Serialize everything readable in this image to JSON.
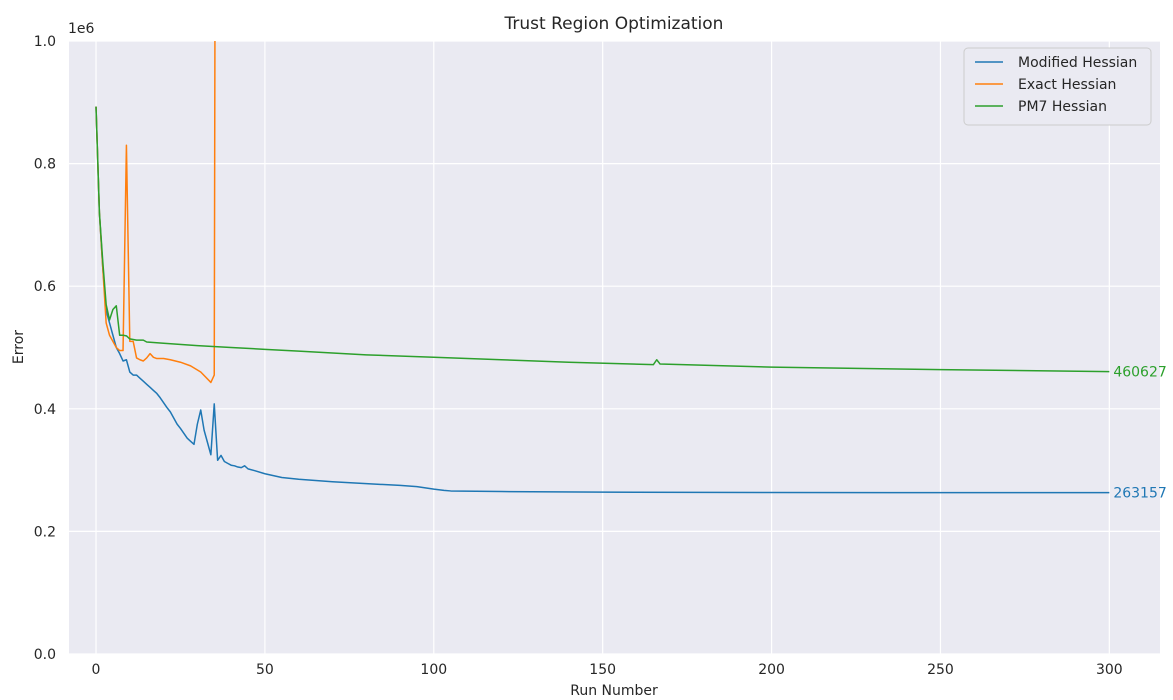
{
  "chart_data": {
    "type": "line",
    "title": "Trust Region Optimization",
    "xlabel": "Run Number",
    "ylabel": "Error",
    "y_offset_label": "1e6",
    "xlim": [
      -8,
      315
    ],
    "ylim": [
      0,
      1000000
    ],
    "xticks": [
      0,
      50,
      100,
      150,
      200,
      250,
      300
    ],
    "yticks": [
      0.0,
      0.2,
      0.4,
      0.6,
      0.8,
      1.0
    ],
    "ytick_labels": [
      "0.0",
      "0.2",
      "0.4",
      "0.6",
      "0.8",
      "1.0"
    ],
    "grid": true,
    "legend_position": "top-right",
    "series": [
      {
        "name": "Modified Hessian",
        "color": "#1f77b4",
        "end_label": "263157",
        "points": [
          [
            0,
            893000
          ],
          [
            1,
            720000
          ],
          [
            2,
            630000
          ],
          [
            3,
            560000
          ],
          [
            4,
            540000
          ],
          [
            5,
            520000
          ],
          [
            6,
            500000
          ],
          [
            7,
            490000
          ],
          [
            8,
            478000
          ],
          [
            9,
            480000
          ],
          [
            10,
            460000
          ],
          [
            11,
            455000
          ],
          [
            12,
            455000
          ],
          [
            13,
            450000
          ],
          [
            14,
            445000
          ],
          [
            15,
            440000
          ],
          [
            16,
            435000
          ],
          [
            17,
            430000
          ],
          [
            18,
            425000
          ],
          [
            19,
            418000
          ],
          [
            20,
            410000
          ],
          [
            21,
            402000
          ],
          [
            22,
            395000
          ],
          [
            23,
            385000
          ],
          [
            24,
            375000
          ],
          [
            25,
            368000
          ],
          [
            26,
            360000
          ],
          [
            27,
            352000
          ],
          [
            28,
            347000
          ],
          [
            29,
            342000
          ],
          [
            30,
            375000
          ],
          [
            31,
            398000
          ],
          [
            32,
            365000
          ],
          [
            33,
            345000
          ],
          [
            34,
            325000
          ],
          [
            35,
            408000
          ],
          [
            36,
            316000
          ],
          [
            37,
            324000
          ],
          [
            38,
            314000
          ],
          [
            39,
            311000
          ],
          [
            40,
            308000
          ],
          [
            41,
            307000
          ],
          [
            42,
            305000
          ],
          [
            43,
            304000
          ],
          [
            44,
            307000
          ],
          [
            45,
            302000
          ],
          [
            47,
            299000
          ],
          [
            50,
            294000
          ],
          [
            55,
            288000
          ],
          [
            60,
            285000
          ],
          [
            70,
            281000
          ],
          [
            80,
            278000
          ],
          [
            90,
            275000
          ],
          [
            95,
            273000
          ],
          [
            100,
            269000
          ],
          [
            103,
            267000
          ],
          [
            105,
            266000
          ],
          [
            120,
            265000
          ],
          [
            150,
            264000
          ],
          [
            200,
            263500
          ],
          [
            250,
            263200
          ],
          [
            300,
            263157
          ]
        ]
      },
      {
        "name": "Exact Hessian",
        "color": "#ff7f0e",
        "end_label": "",
        "points": [
          [
            0,
            893000
          ],
          [
            1,
            720000
          ],
          [
            2,
            630000
          ],
          [
            3,
            540000
          ],
          [
            4,
            520000
          ],
          [
            5,
            510000
          ],
          [
            6,
            500000
          ],
          [
            7,
            495000
          ],
          [
            8,
            495000
          ],
          [
            9,
            830000
          ],
          [
            10,
            510000
          ],
          [
            11,
            510000
          ],
          [
            12,
            483000
          ],
          [
            13,
            480000
          ],
          [
            14,
            478000
          ],
          [
            15,
            483000
          ],
          [
            16,
            490000
          ],
          [
            17,
            484000
          ],
          [
            18,
            482000
          ],
          [
            20,
            482000
          ],
          [
            22,
            480000
          ],
          [
            25,
            476000
          ],
          [
            28,
            470000
          ],
          [
            31,
            460000
          ],
          [
            34,
            443000
          ],
          [
            35,
            455000
          ],
          [
            35.2,
            1000000
          ]
        ]
      },
      {
        "name": "PM7 Hessian",
        "color": "#2ca02c",
        "end_label": "460627",
        "points": [
          [
            0,
            893000
          ],
          [
            1,
            720000
          ],
          [
            2,
            640000
          ],
          [
            3,
            570000
          ],
          [
            4,
            545000
          ],
          [
            5,
            562000
          ],
          [
            6,
            568000
          ],
          [
            7,
            520000
          ],
          [
            8,
            520000
          ],
          [
            9,
            519000
          ],
          [
            10,
            514000
          ],
          [
            12,
            512000
          ],
          [
            14,
            512000
          ],
          [
            15,
            509000
          ],
          [
            20,
            507000
          ],
          [
            30,
            503000
          ],
          [
            40,
            500000
          ],
          [
            50,
            497000
          ],
          [
            60,
            494000
          ],
          [
            80,
            488000
          ],
          [
            100,
            484000
          ],
          [
            120,
            480000
          ],
          [
            140,
            476000
          ],
          [
            165,
            472000
          ],
          [
            166,
            480000
          ],
          [
            167,
            473000
          ],
          [
            200,
            468000
          ],
          [
            250,
            464000
          ],
          [
            300,
            460627
          ]
        ]
      }
    ]
  }
}
